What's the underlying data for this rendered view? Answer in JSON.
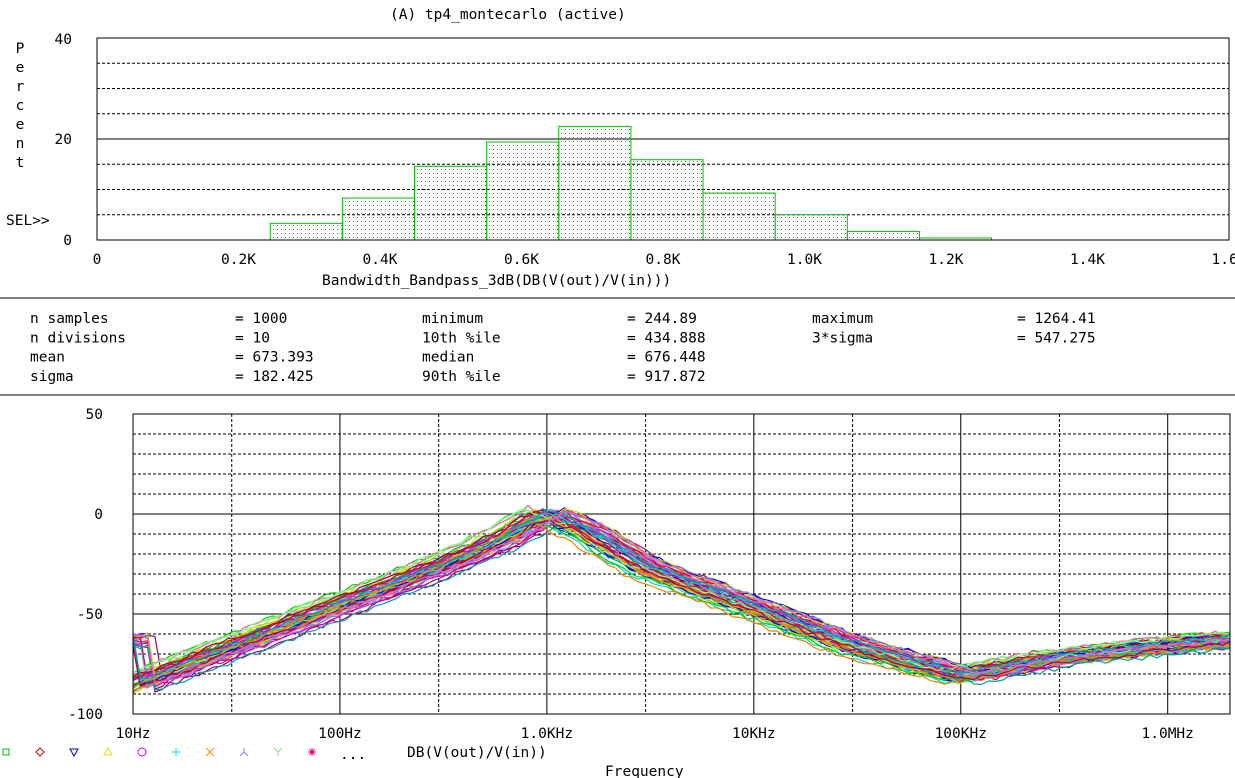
{
  "window_title": "(A) tp4_montecarlo (active)",
  "histogram": {
    "type": "bar",
    "y_axis_label": "Percent",
    "y_ticks": [
      "40",
      "20",
      "0"
    ],
    "ylim": [
      0,
      40
    ],
    "x_ticks": [
      "0",
      "0.2K",
      "0.4K",
      "0.6K",
      "0.8K",
      "1.0K",
      "1.2K",
      "1.4K",
      "1.6K"
    ],
    "x_tick_values": [
      0,
      200,
      400,
      600,
      800,
      1000,
      1200,
      1400,
      1600
    ],
    "xlim": [
      0,
      1600
    ],
    "xlabel": "Bandwidth_Bandpass_3dB(DB(V(out)/V(in)))",
    "sel_marker": "SEL>>",
    "bin_edges": [
      244.89,
      346.84,
      448.79,
      550.74,
      652.69,
      754.65,
      856.6,
      958.55,
      1060.5,
      1162.46,
      1264.41
    ],
    "bin_percent": [
      3.3,
      8.3,
      14.6,
      19.4,
      22.5,
      15.9,
      9.3,
      5.0,
      1.7,
      0.4
    ],
    "bar_color": "#00c000",
    "grid": true
  },
  "stats": {
    "rows": [
      [
        "n samples",
        "= 1000",
        "minimum",
        "= 244.89",
        "maximum",
        "= 1264.41"
      ],
      [
        "n divisions",
        "= 10",
        "10th %ile",
        "= 434.888",
        "3*sigma",
        "= 547.275"
      ],
      [
        "mean",
        "= 673.393",
        "median",
        "= 676.448",
        "",
        ""
      ],
      [
        "sigma",
        "= 182.425",
        "90th %ile",
        "= 917.872",
        "",
        ""
      ]
    ]
  },
  "chart_data": {
    "type": "line",
    "x_scale": "log",
    "xlim": [
      10,
      2000000
    ],
    "ylim": [
      -100,
      50
    ],
    "y_ticks": [
      "50",
      "0",
      "-50",
      "-100"
    ],
    "x_ticks": [
      "10Hz",
      "100Hz",
      "1.0KHz",
      "10KHz",
      "100KHz",
      "1.0MHz"
    ],
    "x_tick_values": [
      10,
      100,
      1000,
      10000,
      100000,
      1000000
    ],
    "xlabel": "Frequency",
    "trace_label": "DB(V(out)/V(in))",
    "legend_more": "...",
    "nominal_response": {
      "x": [
        10,
        30,
        100,
        300,
        600,
        1000,
        1500,
        3000,
        10000,
        30000,
        100000,
        300000,
        1000000,
        2000000
      ],
      "y": [
        -86,
        -67,
        -46,
        -27,
        -13,
        0,
        -8,
        -27,
        -47,
        -66,
        -81,
        -72,
        -66,
        -63
      ]
    },
    "trace_colors": [
      "#00d000",
      "#e00000",
      "#0000e0",
      "#d0d000",
      "#d000d0",
      "#00d0d0",
      "#ff8000",
      "#8080ff",
      "#80ff80",
      "#a00060",
      "#00a0a0",
      "#ff60a0"
    ],
    "legend_colors": [
      "#00c000",
      "#e00000",
      "#0000c0",
      "#e0e000",
      "#e000e0",
      "#00e0e0",
      "#ff9000",
      "#a070ff",
      "#80e080",
      "#d00080"
    ],
    "grid": true
  }
}
